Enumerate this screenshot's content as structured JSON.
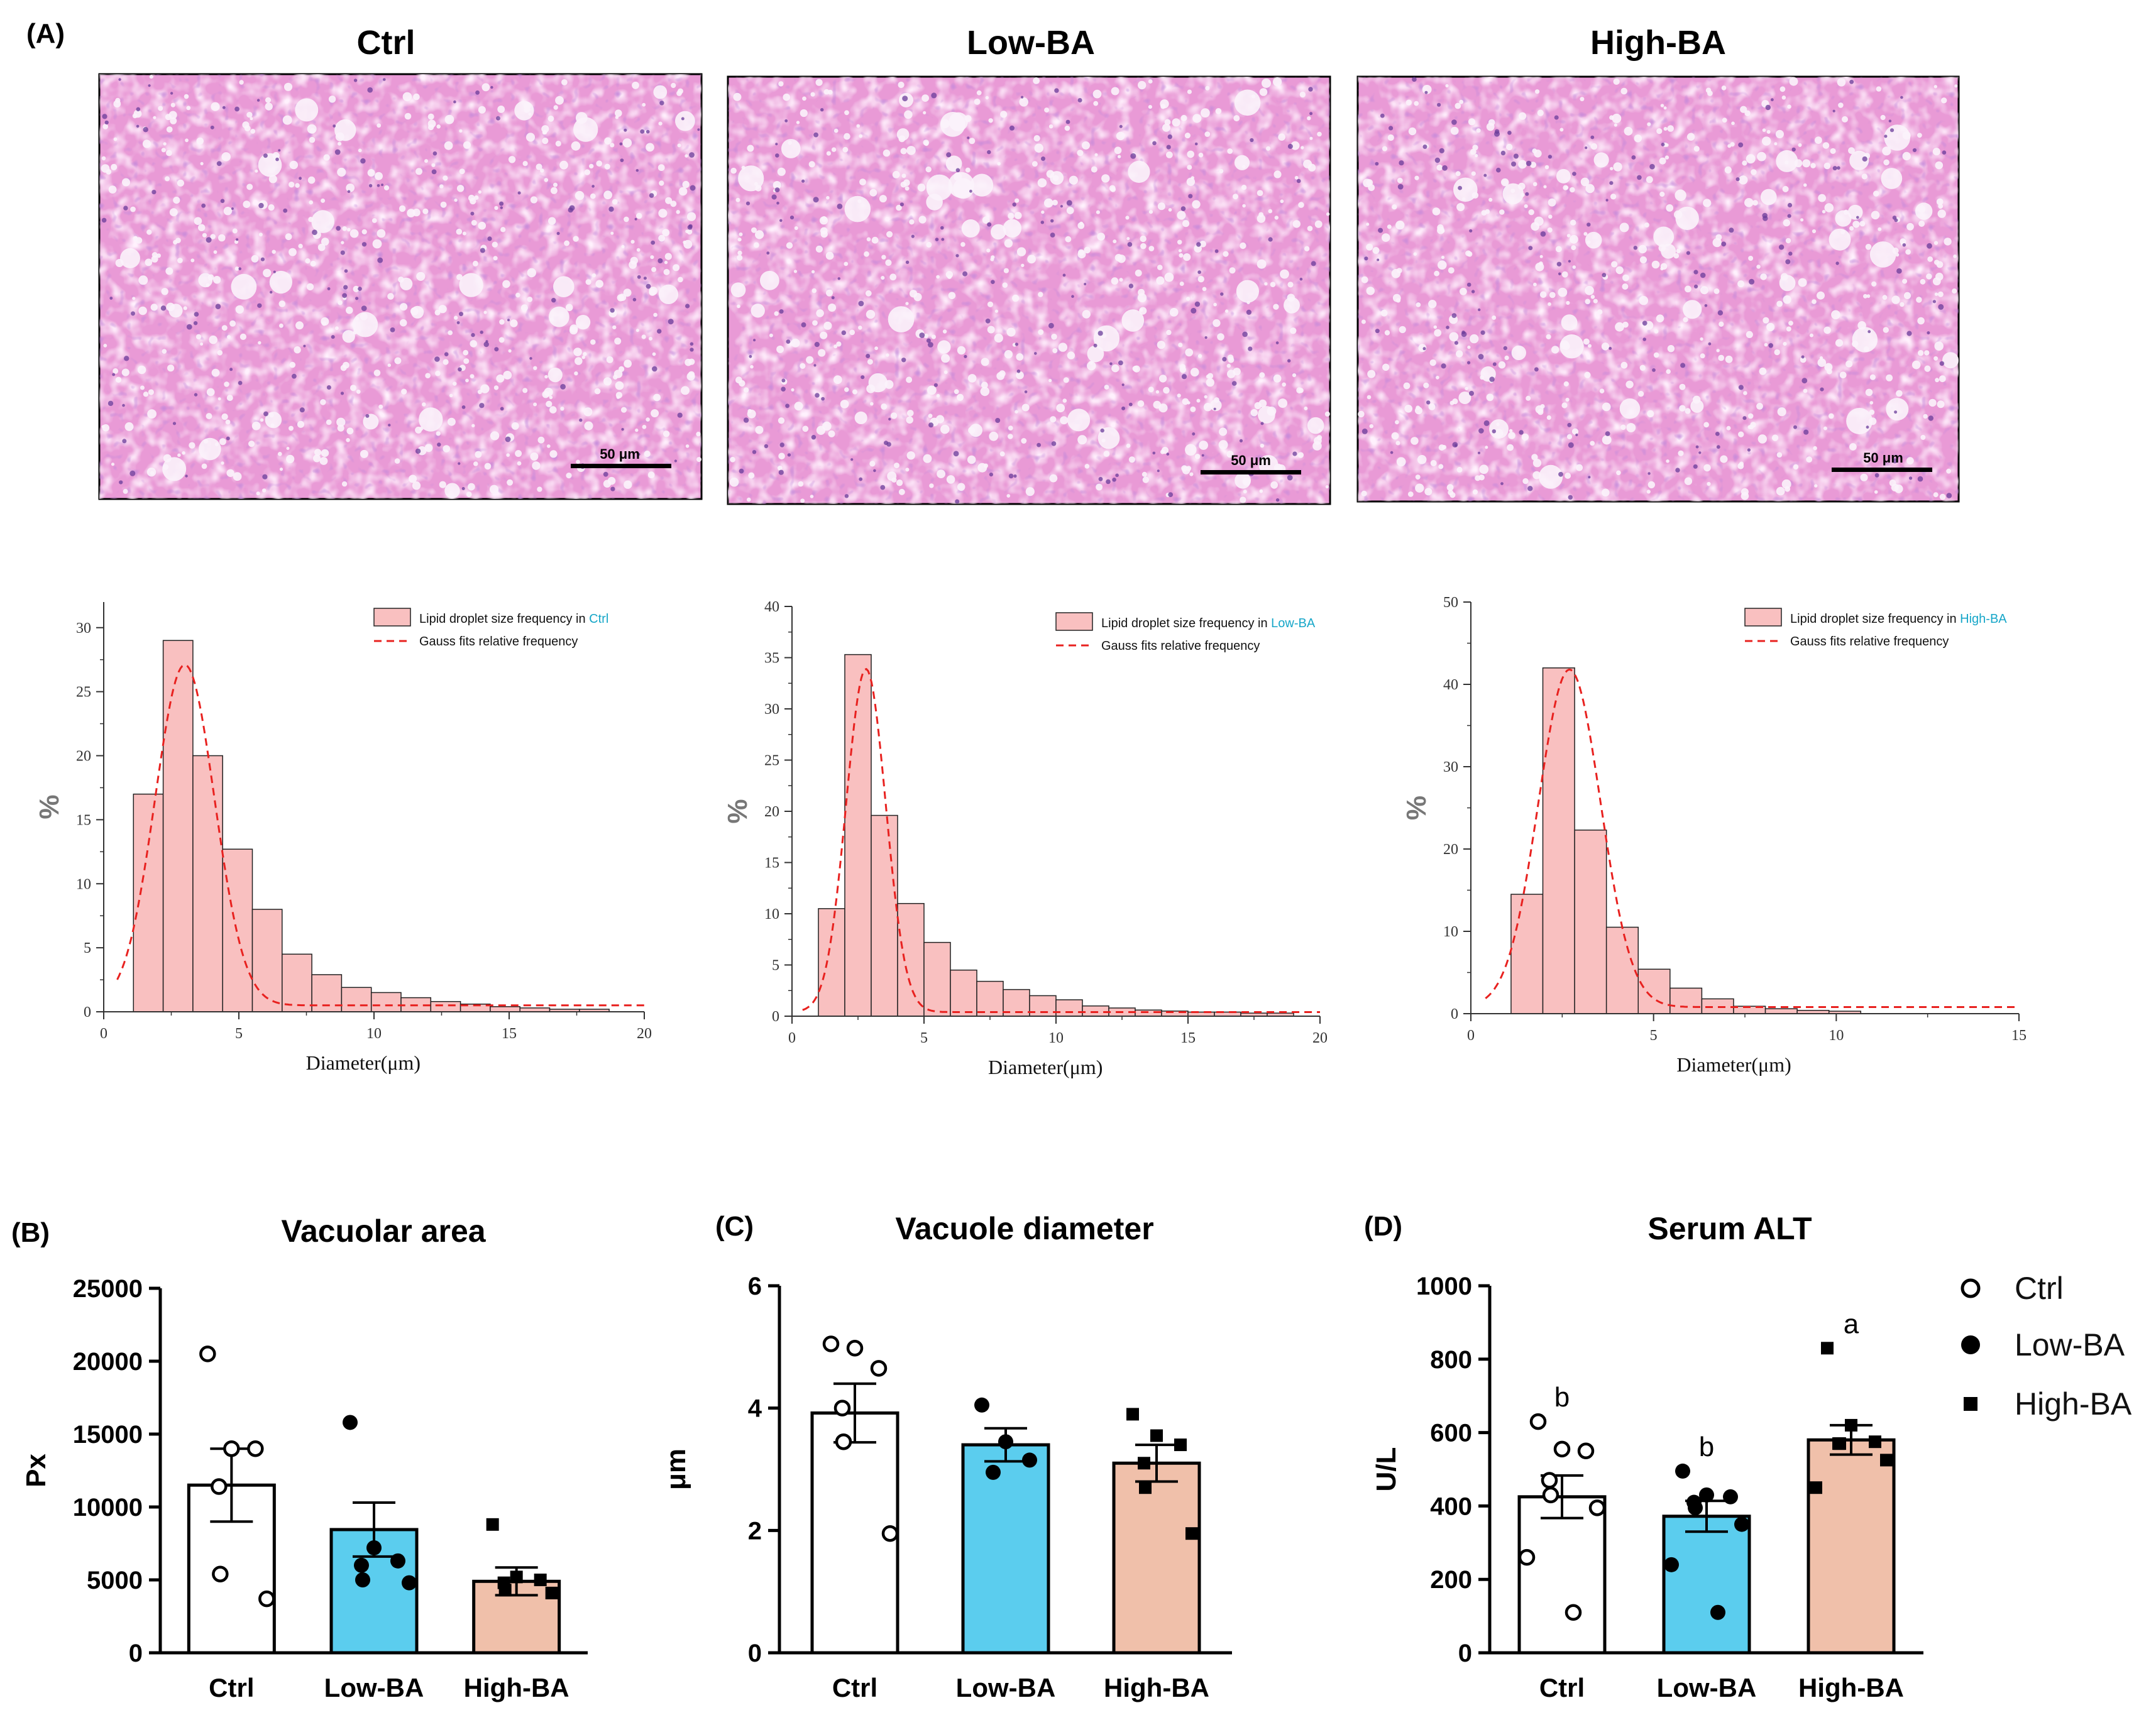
{
  "panel_labels": [
    "(A)",
    "(B)",
    "(C)",
    "(D)"
  ],
  "histology": [
    {
      "title": "Ctrl",
      "scale_text": "50 μm"
    },
    {
      "title": "Low-BA",
      "scale_text": "50 μm"
    },
    {
      "title": "High-BA",
      "scale_text": "50 μm"
    }
  ],
  "colors": {
    "ctrl_fill": "#ffffff",
    "low_fill": "#5bcdee",
    "high_fill": "#f0c0aa",
    "hist_fill": "#f9c0c0",
    "gauss": "#e8211f",
    "legend_group": "#16a6c8",
    "tissue_bg": "#e99ad6"
  },
  "chart_data": [
    {
      "type": "bar",
      "subtype": "histogram",
      "group": "Ctrl",
      "legend_prefix": "Lipid droplet size frequency in ",
      "legend_group": "Ctrl",
      "fit_label": "Gauss fits relative frequency",
      "xlabel": "Diameter(μm)",
      "ylabel": "%",
      "xlim": [
        0,
        20
      ],
      "ylim": [
        0,
        32
      ],
      "xticks": [
        0,
        5,
        10,
        15,
        20
      ],
      "yticks": [
        0,
        5,
        10,
        15,
        20,
        25,
        30
      ],
      "bin_width": 1.1,
      "bin_starts": [
        1.1,
        2.2,
        3.3,
        4.4,
        5.5,
        6.6,
        7.7,
        8.8,
        9.9,
        11.0,
        12.1,
        13.2,
        14.3,
        15.4,
        16.5,
        17.6
      ],
      "values": [
        17,
        29,
        20,
        12.7,
        8,
        4.5,
        2.9,
        1.9,
        1.5,
        1.1,
        0.8,
        0.6,
        0.4,
        0.3,
        0.2,
        0.2
      ],
      "gauss": {
        "mu": 3.0,
        "sigma": 1.1,
        "amp": 26.6,
        "baseline": 0.5,
        "x_range": [
          0.5,
          20
        ]
      }
    },
    {
      "type": "bar",
      "subtype": "histogram",
      "group": "Low-BA",
      "legend_prefix": "Lipid droplet size frequency in ",
      "legend_group": "Low-BA",
      "fit_label": "Gauss fits relative frequency",
      "xlabel": "Diameter(μm)",
      "ylabel": "%",
      "xlim": [
        0,
        20
      ],
      "ylim": [
        0,
        40
      ],
      "xticks": [
        0,
        5,
        10,
        15,
        20
      ],
      "yticks": [
        0,
        5,
        10,
        15,
        20,
        25,
        30,
        35,
        40
      ],
      "bin_width": 1.0,
      "bin_starts": [
        1.0,
        2.0,
        3.0,
        4.0,
        5.0,
        6.0,
        7.0,
        8.0,
        9.0,
        10.0,
        11.0,
        12.0,
        13.0,
        14.0,
        15.0,
        16.0,
        17.0,
        18.0
      ],
      "values": [
        10.5,
        35.3,
        19.6,
        11,
        7.2,
        4.5,
        3.4,
        2.6,
        2.0,
        1.6,
        1.0,
        0.8,
        0.6,
        0.5,
        0.4,
        0.4,
        0.3,
        0.3
      ],
      "gauss": {
        "mu": 2.8,
        "sigma": 0.75,
        "amp": 33.5,
        "baseline": 0.4,
        "x_range": [
          0.4,
          20
        ]
      }
    },
    {
      "type": "bar",
      "subtype": "histogram",
      "group": "High-BA",
      "legend_prefix": "Lipid droplet size frequency in ",
      "legend_group": "High-BA",
      "fit_label": "Gauss fits relative frequency",
      "xlabel": "Diameter(μm)",
      "ylabel": "%",
      "xlim": [
        0,
        15
      ],
      "ylim": [
        0,
        50
      ],
      "xticks": [
        0,
        5,
        10,
        15
      ],
      "yticks": [
        0,
        10,
        20,
        30,
        40,
        50
      ],
      "bin_width": 0.87,
      "bin_starts": [
        1.1,
        1.97,
        2.84,
        3.71,
        4.58,
        5.45,
        6.32,
        7.19,
        8.06,
        8.93,
        9.8
      ],
      "values": [
        14.5,
        42,
        22.3,
        10.5,
        5.4,
        3.1,
        1.8,
        0.9,
        0.6,
        0.4,
        0.3
      ],
      "gauss": {
        "mu": 2.7,
        "sigma": 0.85,
        "amp": 41,
        "baseline": 0.8,
        "x_range": [
          0.4,
          15
        ]
      }
    },
    {
      "type": "bar",
      "panel": "(B)",
      "title": "Vacuolar area",
      "ylabel": "Px",
      "categories": [
        "Ctrl",
        "Low-BA",
        "High-BA"
      ],
      "values": [
        11500,
        8450,
        4900
      ],
      "errors": [
        2500,
        1850,
        950
      ],
      "points": [
        [
          20500,
          14000,
          14000,
          11400,
          5400,
          3700
        ],
        [
          15800,
          7200,
          6300,
          6000,
          5000,
          4800
        ],
        [
          8800,
          5200,
          5000,
          4800,
          4300,
          4100
        ]
      ],
      "ylim": [
        0,
        25000
      ],
      "yticks": [
        0,
        5000,
        10000,
        15000,
        20000,
        25000
      ]
    },
    {
      "type": "bar",
      "panel": "(C)",
      "title": "Vacuole diameter",
      "ylabel": "μm",
      "categories": [
        "Ctrl",
        "Low-BA",
        "High-BA"
      ],
      "values": [
        3.92,
        3.4,
        3.1
      ],
      "errors": [
        0.48,
        0.27,
        0.3
      ],
      "points": [
        [
          5.05,
          4.98,
          4.65,
          4.0,
          3.45,
          1.95
        ],
        [
          4.05,
          3.45,
          3.15,
          2.95
        ],
        [
          3.9,
          3.55,
          3.4,
          3.1,
          2.7,
          1.95
        ]
      ],
      "ylim": [
        0,
        6
      ],
      "yticks": [
        0,
        2,
        4,
        6
      ]
    },
    {
      "type": "bar",
      "panel": "(D)",
      "title": "Serum ALT",
      "ylabel": "U/L",
      "categories": [
        "Ctrl",
        "Low-BA",
        "High-BA"
      ],
      "values": [
        425,
        372,
        580
      ],
      "errors": [
        58,
        42,
        40
      ],
      "points": [
        [
          630,
          555,
          550,
          470,
          430,
          395,
          260,
          110
        ],
        [
          495,
          430,
          425,
          410,
          395,
          350,
          240,
          110
        ],
        [
          830,
          620,
          575,
          570,
          570,
          525,
          450
        ]
      ],
      "significance": [
        "b",
        "b",
        "a"
      ],
      "ylim": [
        0,
        1000
      ],
      "yticks": [
        0,
        200,
        400,
        600,
        800,
        1000
      ]
    }
  ],
  "legend": [
    {
      "label": "Ctrl",
      "marker": "open-circle"
    },
    {
      "label": "Low-BA",
      "marker": "filled-circle"
    },
    {
      "label": "High-BA",
      "marker": "filled-square"
    }
  ]
}
